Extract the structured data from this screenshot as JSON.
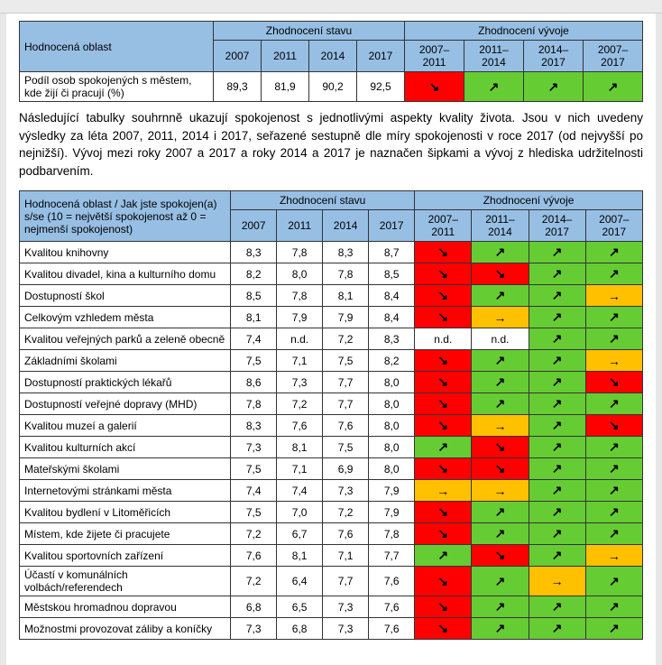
{
  "toolbar": {},
  "colors": {
    "header_bg": "#97bfe4",
    "red": "#ff0000",
    "green": "#66cc33",
    "orange": "#ffc000",
    "white": "#ffffff",
    "border": "#333333"
  },
  "arrows": {
    "up": "↗",
    "down": "↘",
    "flat": "→"
  },
  "head": {
    "left": "Hodnocená oblast",
    "state": "Zhodnocení stavu",
    "trend": "Zhodnocení vývoje",
    "y2007": "2007",
    "y2011": "2011",
    "y2014": "2014",
    "y2017": "2017",
    "p1": "2007–\n2011",
    "p2": "2011–\n2014",
    "p3": "2014–\n2017",
    "p4": "2007–\n2017"
  },
  "t1row": {
    "label": "Podíl osob spokojených s městem, kde žijí či pracují (%)",
    "v2007": "89,3",
    "v2011": "81,9",
    "v2014": "90,2",
    "v2017": "92,5",
    "trend": [
      {
        "sym": "↘",
        "bg": "#ff0000"
      },
      {
        "sym": "↗",
        "bg": "#66cc33"
      },
      {
        "sym": "↗",
        "bg": "#66cc33"
      },
      {
        "sym": "↗",
        "bg": "#66cc33"
      }
    ]
  },
  "paragraph": "Následující tabulky souhrnně ukazují spokojenost s jednotlivými aspekty kvality života. Jsou v nich uvedeny výsledky za léta 2007, 2011, 2014 i 2017, seřazené sestupně dle míry spokojenosti v roce 2017 (od nejvyšší po nejnižší). Vývoj mezi roky 2007 a 2017 a roky 2014 a 2017 je naznačen šipkami a vývoj z hlediska udržitelnosti podbarvením.",
  "t2hdr": "Hodnocená oblast / Jak jste spokojen(a) s/se (10 = největší spokojenost až 0 = nejmenší spokojenost)",
  "rows": [
    {
      "label": "Kvalitou knihovny",
      "v": [
        "8,3",
        "7,8",
        "8,3",
        "8,7"
      ],
      "t": [
        [
          "↘",
          "#ff0000"
        ],
        [
          "↗",
          "#66cc33"
        ],
        [
          "↗",
          "#66cc33"
        ],
        [
          "↗",
          "#66cc33"
        ]
      ]
    },
    {
      "label": "Kvalitou divadel, kina a kulturního domu",
      "v": [
        "8,2",
        "8,0",
        "7,8",
        "8,5"
      ],
      "t": [
        [
          "↘",
          "#ff0000"
        ],
        [
          "↘",
          "#ff0000"
        ],
        [
          "↗",
          "#66cc33"
        ],
        [
          "↗",
          "#66cc33"
        ]
      ]
    },
    {
      "label": "Dostupností škol",
      "v": [
        "8,5",
        "7,8",
        "8,1",
        "8,4"
      ],
      "t": [
        [
          "↘",
          "#ff0000"
        ],
        [
          "↗",
          "#66cc33"
        ],
        [
          "↗",
          "#66cc33"
        ],
        [
          "→",
          "#ffc000"
        ]
      ]
    },
    {
      "label": "Celkovým vzhledem města",
      "v": [
        "8,1",
        "7,9",
        "7,9",
        "8,4"
      ],
      "t": [
        [
          "↘",
          "#ff0000"
        ],
        [
          "→",
          "#ffc000"
        ],
        [
          "↗",
          "#66cc33"
        ],
        [
          "↗",
          "#66cc33"
        ]
      ]
    },
    {
      "label": "Kvalitou veřejných parků a zeleně obecně",
      "v": [
        "7,4",
        "n.d.",
        "7,2",
        "8,3"
      ],
      "t": [
        [
          "n.d.",
          "#ffffff"
        ],
        [
          "n.d.",
          "#ffffff"
        ],
        [
          "↗",
          "#66cc33"
        ],
        [
          "↗",
          "#66cc33"
        ]
      ]
    },
    {
      "label": "Základními školami",
      "v": [
        "7,5",
        "7,1",
        "7,5",
        "8,2"
      ],
      "t": [
        [
          "↘",
          "#ff0000"
        ],
        [
          "↗",
          "#66cc33"
        ],
        [
          "↗",
          "#66cc33"
        ],
        [
          "→",
          "#ffc000"
        ]
      ]
    },
    {
      "label": "Dostupností praktických lékařů",
      "v": [
        "8,6",
        "7,3",
        "7,7",
        "8,0"
      ],
      "t": [
        [
          "↘",
          "#ff0000"
        ],
        [
          "↗",
          "#66cc33"
        ],
        [
          "↗",
          "#66cc33"
        ],
        [
          "↘",
          "#ff0000"
        ]
      ]
    },
    {
      "label": "Dostupností veřejné dopravy (MHD)",
      "v": [
        "7,8",
        "7,2",
        "7,7",
        "8,0"
      ],
      "t": [
        [
          "↘",
          "#ff0000"
        ],
        [
          "↗",
          "#66cc33"
        ],
        [
          "↗",
          "#66cc33"
        ],
        [
          "↗",
          "#66cc33"
        ]
      ]
    },
    {
      "label": "Kvalitou muzeí a galerií",
      "v": [
        "8,3",
        "7,6",
        "7,6",
        "8,0"
      ],
      "t": [
        [
          "↘",
          "#ff0000"
        ],
        [
          "→",
          "#ffc000"
        ],
        [
          "↗",
          "#66cc33"
        ],
        [
          "↘",
          "#ff0000"
        ]
      ]
    },
    {
      "label": "Kvalitou kulturních akcí",
      "v": [
        "7,3",
        "8,1",
        "7,5",
        "8,0"
      ],
      "t": [
        [
          "↗",
          "#66cc33"
        ],
        [
          "↘",
          "#ff0000"
        ],
        [
          "↗",
          "#66cc33"
        ],
        [
          "↗",
          "#66cc33"
        ]
      ]
    },
    {
      "label": "Mateřskými školami",
      "v": [
        "7,5",
        "7,1",
        "6,9",
        "8,0"
      ],
      "t": [
        [
          "↘",
          "#ff0000"
        ],
        [
          "↘",
          "#ff0000"
        ],
        [
          "↗",
          "#66cc33"
        ],
        [
          "↗",
          "#66cc33"
        ]
      ]
    },
    {
      "label": "Internetovými stránkami města",
      "v": [
        "7,4",
        "7,4",
        "7,3",
        "7,9"
      ],
      "t": [
        [
          "→",
          "#ffc000"
        ],
        [
          "→",
          "#ffc000"
        ],
        [
          "↗",
          "#66cc33"
        ],
        [
          "↗",
          "#66cc33"
        ]
      ]
    },
    {
      "label": "Kvalitou bydlení v Litoměřicích",
      "v": [
        "7,5",
        "7,0",
        "7,2",
        "7,9"
      ],
      "t": [
        [
          "↘",
          "#ff0000"
        ],
        [
          "↗",
          "#66cc33"
        ],
        [
          "↗",
          "#66cc33"
        ],
        [
          "↗",
          "#66cc33"
        ]
      ]
    },
    {
      "label": "Místem, kde žijete či pracujete",
      "v": [
        "7,2",
        "6,7",
        "7,6",
        "7,8"
      ],
      "t": [
        [
          "↘",
          "#ff0000"
        ],
        [
          "↗",
          "#66cc33"
        ],
        [
          "↗",
          "#66cc33"
        ],
        [
          "↗",
          "#66cc33"
        ]
      ]
    },
    {
      "label": "Kvalitou sportovních zařízení",
      "v": [
        "7,6",
        "8,1",
        "7,1",
        "7,7"
      ],
      "t": [
        [
          "↗",
          "#66cc33"
        ],
        [
          "↘",
          "#ff0000"
        ],
        [
          "↗",
          "#66cc33"
        ],
        [
          "→",
          "#ffc000"
        ]
      ]
    },
    {
      "label": "Účastí v komunálních volbách/referendech",
      "v": [
        "7,2",
        "6,4",
        "7,7",
        "7,6"
      ],
      "t": [
        [
          "↘",
          "#ff0000"
        ],
        [
          "↗",
          "#66cc33"
        ],
        [
          "→",
          "#ffc000"
        ],
        [
          "↗",
          "#66cc33"
        ]
      ]
    },
    {
      "label": "Městskou hromadnou dopravou",
      "v": [
        "6,8",
        "6,5",
        "7,3",
        "7,6"
      ],
      "t": [
        [
          "↘",
          "#ff0000"
        ],
        [
          "↗",
          "#66cc33"
        ],
        [
          "↗",
          "#66cc33"
        ],
        [
          "↗",
          "#66cc33"
        ]
      ]
    },
    {
      "label": "Možnostmi provozovat záliby a koníčky",
      "v": [
        "7,3",
        "6,8",
        "7,3",
        "7,6"
      ],
      "t": [
        [
          "↘",
          "#ff0000"
        ],
        [
          "↗",
          "#66cc33"
        ],
        [
          "↗",
          "#66cc33"
        ],
        [
          "↗",
          "#66cc33"
        ]
      ]
    }
  ]
}
